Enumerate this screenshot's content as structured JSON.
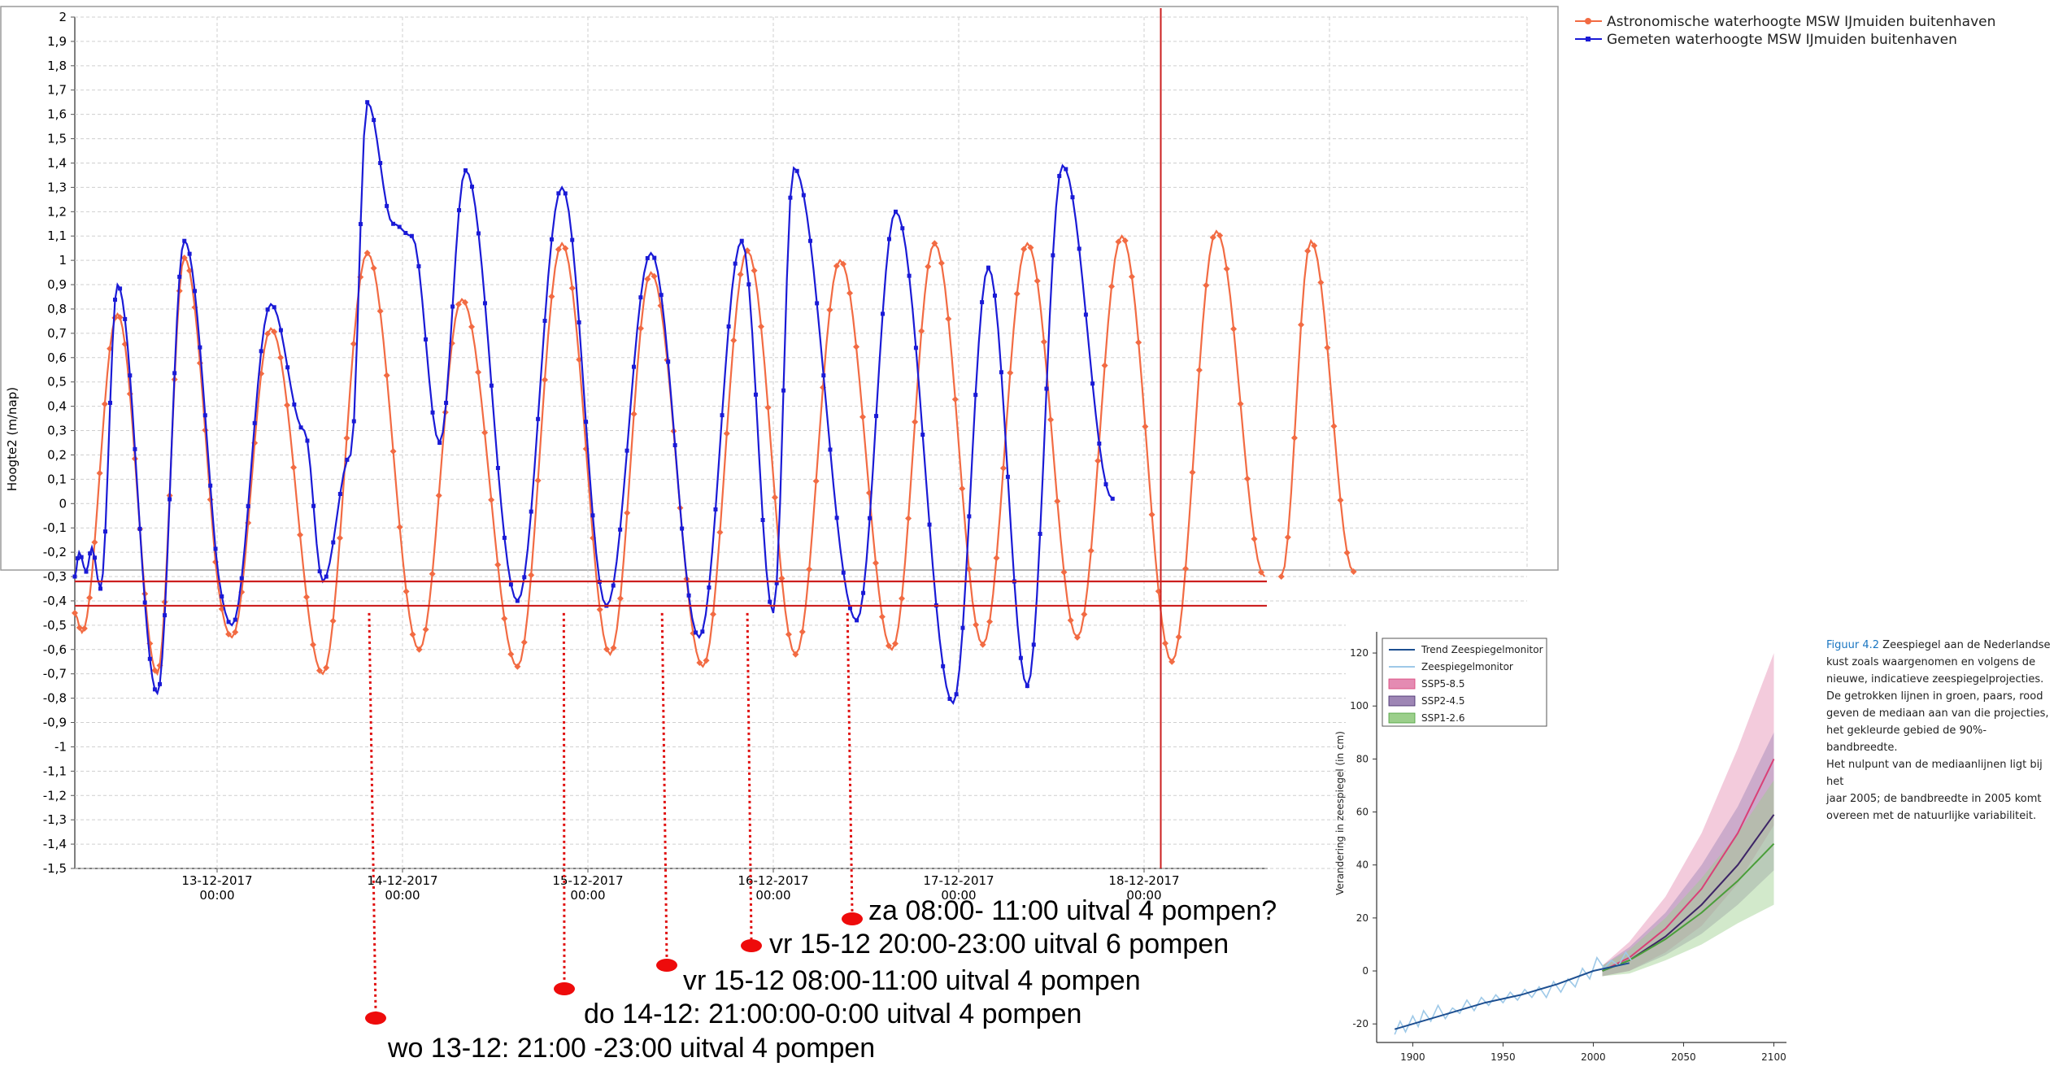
{
  "chart_data": [
    {
      "type": "line",
      "title": "",
      "ylabel": "Hoogte2 (m/nap)",
      "xlabel": "",
      "ylim": [
        -1.5,
        2.0
      ],
      "y_ticks": [
        "2",
        "1,9",
        "1,8",
        "1,7",
        "1,6",
        "1,5",
        "1,4",
        "1,3",
        "1,2",
        "1,1",
        "1",
        "0,9",
        "0,8",
        "0,7",
        "0,6",
        "0,5",
        "0,4",
        "0,3",
        "0,2",
        "0,1",
        "0",
        "-0,1",
        "-0,2",
        "-0,3",
        "-0,4",
        "-0,5",
        "-0,6",
        "-0,7",
        "-0,8",
        "-0,9",
        "-1",
        "-1,1",
        "-1,2",
        "-1,3",
        "-1,4",
        "-1,5"
      ],
      "x_unit": "days since 12-12-2017 00:00",
      "xlim": [
        0.0,
        6.65
      ],
      "x_ticks": [
        {
          "x": 1,
          "date": "13-12-2017",
          "time": "00:00"
        },
        {
          "x": 2,
          "date": "14-12-2017",
          "time": "00:00"
        },
        {
          "x": 3,
          "date": "15-12-2017",
          "time": "00:00"
        },
        {
          "x": 4,
          "date": "16-12-2017",
          "time": "00:00"
        },
        {
          "x": 5,
          "date": "17-12-2017",
          "time": "00:00"
        },
        {
          "x": 6,
          "date": "18-12-2017",
          "time": "00:00"
        }
      ],
      "legend_position": "top-right",
      "series": [
        {
          "name": "Astronomische waterhoogte MSW IJmuiden buitenhaven",
          "color": "#f26b43",
          "extrema": [
            [
              0.0,
              -0.45
            ],
            [
              0.05,
              -0.53
            ],
            [
              0.3,
              0.78
            ],
            [
              0.58,
              -0.7
            ],
            [
              0.77,
              1.01
            ],
            [
              1.08,
              -0.55
            ],
            [
              1.29,
              0.72
            ],
            [
              1.57,
              -0.7
            ],
            [
              1.81,
              1.03
            ],
            [
              2.09,
              -0.6
            ],
            [
              2.32,
              0.84
            ],
            [
              2.62,
              -0.67
            ],
            [
              2.86,
              1.07
            ],
            [
              3.12,
              -0.62
            ],
            [
              3.34,
              0.95
            ],
            [
              3.62,
              -0.67
            ],
            [
              3.86,
              1.04
            ],
            [
              4.12,
              -0.62
            ],
            [
              4.36,
              1.0
            ],
            [
              4.64,
              -0.6
            ],
            [
              4.87,
              1.07
            ],
            [
              5.13,
              -0.58
            ],
            [
              5.37,
              1.07
            ],
            [
              5.64,
              -0.55
            ],
            [
              5.88,
              1.1
            ],
            [
              6.15,
              -0.65
            ],
            [
              6.39,
              1.12
            ],
            [
              6.65,
              -0.3
            ]
          ],
          "segments_after_gap": [
            [
              [
                6.74,
                -0.3
              ],
              [
                6.9,
                1.08
              ],
              [
                7.13,
                -0.28
              ]
            ]
          ]
        },
        {
          "name": "Gemeten waterhoogte MSW IJmuiden buitenhaven",
          "color": "#1a1ad6",
          "extrema": [
            [
              0.0,
              -0.3
            ],
            [
              0.03,
              -0.2
            ],
            [
              0.08,
              -0.28
            ],
            [
              0.12,
              -0.18
            ],
            [
              0.18,
              -0.35
            ],
            [
              0.3,
              0.9
            ],
            [
              0.58,
              -0.78
            ],
            [
              0.77,
              1.08
            ],
            [
              1.08,
              -0.5
            ],
            [
              1.29,
              0.82
            ],
            [
              1.47,
              0.3
            ],
            [
              1.57,
              -0.32
            ],
            [
              1.72,
              0.2
            ],
            [
              1.81,
              1.65
            ],
            [
              1.95,
              1.15
            ],
            [
              2.05,
              1.1
            ],
            [
              2.2,
              0.25
            ],
            [
              2.34,
              1.37
            ],
            [
              2.62,
              -0.4
            ],
            [
              2.86,
              1.3
            ],
            [
              3.1,
              -0.42
            ],
            [
              3.34,
              1.03
            ],
            [
              3.6,
              -0.55
            ],
            [
              3.83,
              1.08
            ],
            [
              4.0,
              -0.45
            ],
            [
              4.11,
              1.38
            ],
            [
              4.45,
              -0.48
            ],
            [
              4.66,
              1.2
            ],
            [
              4.97,
              -0.82
            ],
            [
              5.16,
              0.97
            ],
            [
              5.37,
              -0.75
            ],
            [
              5.56,
              1.39
            ],
            [
              5.83,
              0.02
            ]
          ]
        }
      ],
      "reference_lines_y": [
        -0.32,
        -0.42
      ],
      "current_time_x": 6.09
    },
    {
      "type": "line",
      "title": "",
      "ylabel": "Verandering in zeespiegel (in cm)",
      "xlabel": "",
      "xlim": [
        1880,
        2107
      ],
      "ylim": [
        -27,
        128
      ],
      "x_ticks": [
        "1900",
        "1950",
        "2000",
        "2050",
        "2100"
      ],
      "y_ticks": [
        "-20",
        "0",
        "20",
        "40",
        "60",
        "80",
        "100",
        "120"
      ],
      "legend_position": "top-left",
      "series": [
        {
          "name": "Trend Zeespiegelmonitor",
          "color": "#1d4f91",
          "x": [
            1890,
            1900,
            1920,
            1940,
            1960,
            1980,
            2000,
            2020
          ],
          "y": [
            -22,
            -20,
            -16,
            -12,
            -9,
            -5,
            0,
            3
          ]
        },
        {
          "name": "Zeespiegelmonitor",
          "color": "#9ec9e8",
          "x": [
            1890,
            1893,
            1896,
            1900,
            1903,
            1906,
            1910,
            1914,
            1918,
            1922,
            1926,
            1930,
            1934,
            1938,
            1942,
            1946,
            1950,
            1954,
            1958,
            1962,
            1966,
            1970,
            1974,
            1978,
            1982,
            1986,
            1990,
            1994,
            1998,
            2002,
            2006,
            2010,
            2014,
            2018,
            2021
          ],
          "y": [
            -24,
            -19,
            -23,
            -17,
            -21,
            -15,
            -19,
            -13,
            -18,
            -14,
            -16,
            -11,
            -15,
            -10,
            -13,
            -9,
            -12,
            -8,
            -11,
            -7,
            -10,
            -6,
            -10,
            -4,
            -8,
            -3,
            -6,
            1,
            -3,
            5,
            1,
            4,
            2,
            7,
            4
          ]
        },
        {
          "name": "SSP5-8.5",
          "color": "#d94077",
          "band_color": "#e48bb2",
          "x": [
            2005,
            2020,
            2040,
            2060,
            2080,
            2100
          ],
          "median": [
            0,
            5,
            16,
            31,
            52,
            80
          ],
          "low": [
            -2,
            0,
            7,
            17,
            33,
            55
          ],
          "high": [
            2,
            11,
            28,
            52,
            84,
            120
          ]
        },
        {
          "name": "SSP2-4.5",
          "color": "#3d2566",
          "band_color": "#9e86b5",
          "x": [
            2005,
            2020,
            2040,
            2060,
            2080,
            2100
          ],
          "median": [
            0,
            4,
            13,
            25,
            40,
            59
          ],
          "low": [
            -2,
            0,
            6,
            14,
            25,
            38
          ],
          "high": [
            2,
            9,
            22,
            40,
            62,
            90
          ]
        },
        {
          "name": "SSP1-2.6",
          "color": "#4a9e3a",
          "band_color": "#9bcf8b",
          "x": [
            2005,
            2020,
            2040,
            2060,
            2080,
            2100
          ],
          "median": [
            0,
            4,
            12,
            22,
            34,
            48
          ],
          "low": [
            -2,
            -1,
            4,
            10,
            18,
            25
          ],
          "high": [
            2,
            8,
            20,
            35,
            52,
            72
          ]
        }
      ]
    }
  ],
  "annotations": [
    {
      "text": "za  08:00- 11:00 uitval 4 pompen?",
      "x": 4.4
    },
    {
      "text": "vr  15-12 20:00-23:00 uitval 6 pompen",
      "x": 3.86
    },
    {
      "text": "vr  15-12 08:00-11:00 uitval 4 pompen",
      "x": 3.4
    },
    {
      "text": "do 14-12: 21:00:00-0:00 uitval 4 pompen",
      "x": 2.87
    },
    {
      "text": "wo 13-12: 21:00 -23:00 uitval 4 pompen",
      "x": 1.82
    }
  ],
  "caption": {
    "figure_label": "Figuur 4.2",
    "lines": [
      "Zeespiegel aan de Nederlandse",
      "kust zoals waargenomen en volgens de",
      "nieuwe, indicatieve zeespiegelprojecties.",
      "De getrokken lijnen in groen, paars, rood",
      "geven de mediaan aan van die projecties,",
      "het gekleurde gebied de 90%-bandbreedte.",
      "Het nulpunt van de mediaanlijnen ligt bij het",
      "jaar 2005; de bandbreedte in 2005 komt",
      "overeen met de natuurlijke variabiliteit."
    ]
  }
}
